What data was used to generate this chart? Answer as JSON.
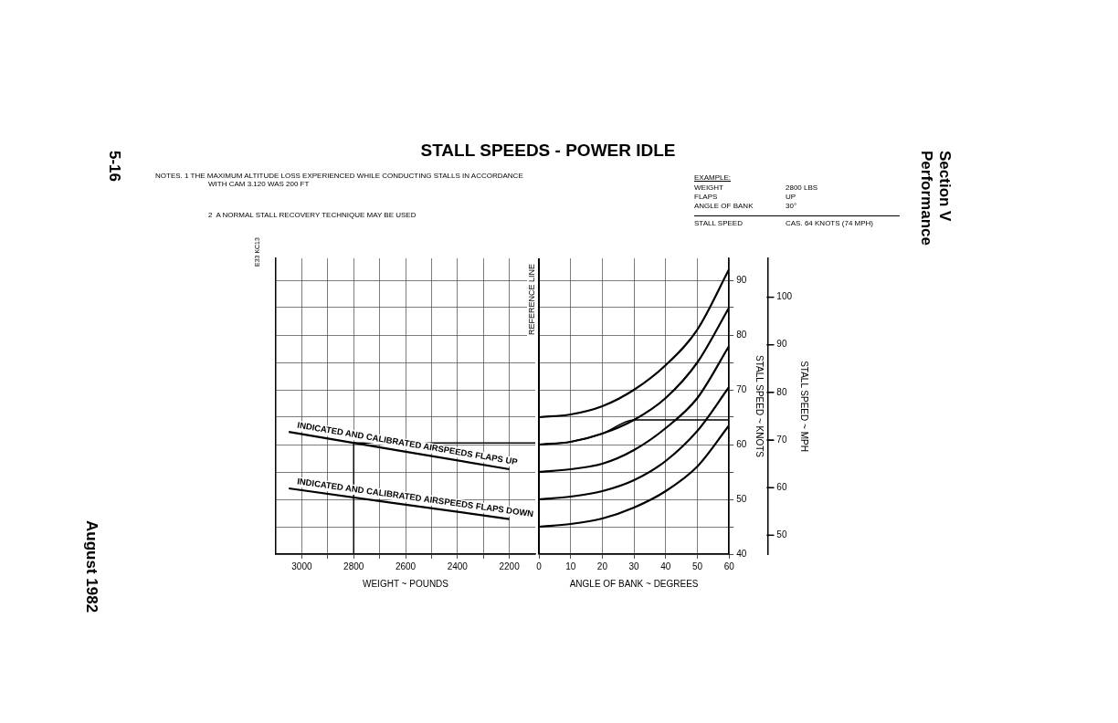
{
  "chart_data": [
    {
      "type": "line",
      "title": "STALL SPEEDS - POWER IDLE",
      "xlabel": "WEIGHT ~ POUNDS",
      "x": [
        3050,
        2200
      ],
      "series": [
        {
          "name": "INDICATED AND CALIBRATED AIRSPEEDS FLAPS UP",
          "color": "#000000",
          "values": [
            62.3,
            55.5
          ]
        },
        {
          "name": "INDICATED AND CALIBRATED AIRSPEEDS FLAPS DOWN",
          "color": "#000000",
          "values": [
            52,
            46.4
          ]
        },
        {
          "color": "#000000",
          "x": [
            2800,
            2800,
            2100
          ],
          "values": [
            40,
            60.3,
            60.3
          ]
        }
      ],
      "xlim": [
        3100,
        2100
      ],
      "xticks": [
        3000,
        {
          "value": 2900,
          "label": null
        },
        2800,
        {
          "value": 2700,
          "label": null
        },
        2600,
        {
          "value": 2500,
          "label": null
        },
        2400,
        {
          "value": 2300,
          "label": null
        },
        2200
      ],
      "ylim": [
        40,
        94
      ],
      "yticks": [
        40,
        45,
        50,
        55,
        60,
        65,
        70,
        75,
        80,
        85,
        90
      ],
      "tick_labels": "x",
      "grid": true,
      "legend": false,
      "marker": "none",
      "annotations": [
        "5-16",
        "NOTES. 1  THE MAXIMUM ALTITUDE LOSS EXPERIENCED WHILE CONDUCTING STALLS IN ACCORDANCE WITH CAM 3.120 WAS 200 FT",
        "2  A NORMAL STALL RECOVERY TECHNIQUE MAY BE USED",
        "EXAMPLE:",
        "WEIGHT\t2800 LBS",
        "FLAPS\tUP",
        "ANGLE OF BANK\t30°",
        "STALL SPEED\tCAS. 64 KNOTS (74 MPH)",
        "August 1982",
        "Section V",
        "Performance",
        "E33 KC13"
      ]
    },
    {
      "type": "line",
      "xlabel": "ANGLE OF BANK ~ DEGREES",
      "ylabel": "STALL SPEED ~ KNOTS",
      "y2label": "STALL SPEED ~ MPH",
      "x": [
        0,
        10,
        20,
        30,
        40,
        50,
        60
      ],
      "series": [
        {
          "color": "#000000",
          "values": [
            65,
            65.5,
            67,
            70,
            74.5,
            81,
            92
          ]
        },
        {
          "color": "#000000",
          "values": [
            60,
            60.5,
            62,
            64.5,
            68.5,
            75,
            85
          ]
        },
        {
          "color": "#000000",
          "values": [
            55,
            55.5,
            56.5,
            59,
            63,
            68.5,
            78
          ]
        },
        {
          "color": "#000000",
          "values": [
            50,
            50.5,
            51.5,
            53.5,
            57,
            62.5,
            70.5
          ]
        },
        {
          "color": "#000000",
          "values": [
            45,
            45.5,
            46.5,
            48.5,
            51.5,
            56,
            63.5
          ]
        },
        {
          "color": "#000000",
          "x": [
            0,
            10,
            20,
            30,
            60
          ],
          "values": [
            60,
            60.5,
            62,
            64.5,
            64.5
          ]
        }
      ],
      "xlim": [
        0,
        60
      ],
      "xticks": [
        0,
        10,
        20,
        30,
        40,
        50,
        60
      ],
      "ylim": [
        40,
        94
      ],
      "yticks": [
        40,
        {
          "value": 45,
          "label": null
        },
        50,
        {
          "value": 55,
          "label": null
        },
        60,
        {
          "value": 65,
          "label": null
        },
        70,
        {
          "value": 75,
          "label": null
        },
        80,
        {
          "value": 85,
          "label": null
        },
        90
      ],
      "y2lim": [
        46.03,
        108.17
      ],
      "y2ticks": [
        50,
        60,
        70,
        80,
        90,
        100
      ],
      "ref_lines": [
        {
          "axis": "x",
          "value": 0,
          "label": "REFERENCE LINE"
        }
      ],
      "grid": true,
      "legend": false,
      "marker": "none"
    }
  ]
}
